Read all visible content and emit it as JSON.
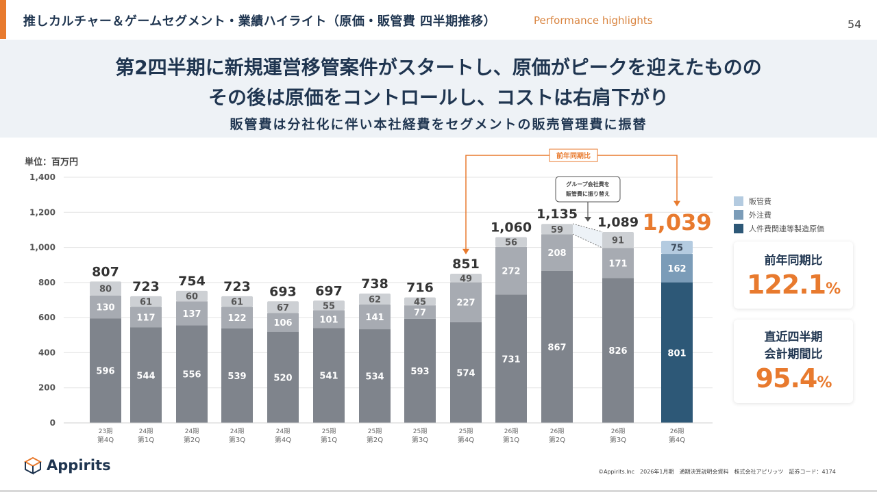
{
  "header": {
    "title": "推しカルチャー＆ゲームセグメント・業績ハイライト（原価・販管費 四半期推移）",
    "subtitle": "Performance highlights",
    "page_number": "54"
  },
  "banner": {
    "line1": "第2四半期に新規運営移管案件がスタートし、原価がピークを迎えたものの",
    "line2": "その後は原価をコントロールし、コストは右肩下がり",
    "line3": "販管費は分社化に伴い本社経費をセグメントの販売管理費に振替"
  },
  "unit_label": "単位：百万円",
  "annotations": {
    "yoy_bracket_label": "前年同期比",
    "transfer_note_line1": "グループ会社費を",
    "transfer_note_line2": "販管費に振り替え"
  },
  "cards": [
    {
      "label_lines": [
        "前年同期比"
      ],
      "value": "122.1",
      "unit": "%"
    },
    {
      "label_lines": [
        "直近四半期",
        "会計期間比"
      ],
      "value": "95.4",
      "unit": "%"
    }
  ],
  "colors": {
    "accent": "#e87a2e",
    "navy": "#1f3550",
    "past_cost": "#7f848c",
    "past_outsourcing": "#a7abb2",
    "past_sga": "#cdd0d4",
    "current_cost": "#2d5877",
    "current_outsourcing": "#7b9cb8",
    "current_sga": "#b4cbe0"
  },
  "chart_data": {
    "type": "bar",
    "stacked": true,
    "title": "",
    "xlabel": "",
    "ylabel": "単位：百万円",
    "ylim": [
      0,
      1400
    ],
    "yticks": [
      0,
      200,
      400,
      600,
      800,
      1000,
      1200,
      1400
    ],
    "ytick_labels": [
      "0",
      "200",
      "400",
      "600",
      "800",
      "1,000",
      "1,200",
      "1,400"
    ],
    "grid": true,
    "legend_position": "right",
    "categories": [
      [
        "23期",
        "第4Q"
      ],
      [
        "24期",
        "第1Q"
      ],
      [
        "24期",
        "第2Q"
      ],
      [
        "24期",
        "第3Q"
      ],
      [
        "24期",
        "第4Q"
      ],
      [
        "25期",
        "第1Q"
      ],
      [
        "25期",
        "第2Q"
      ],
      [
        "25期",
        "第3Q"
      ],
      [
        "25期",
        "第4Q"
      ],
      [
        "26期",
        "第1Q"
      ],
      [
        "26期",
        "第2Q"
      ],
      [
        "26期",
        "第3Q"
      ],
      [
        "26期",
        "第4Q"
      ]
    ],
    "series": [
      {
        "name": "人件費関連等製造原価",
        "values": [
          596,
          544,
          556,
          539,
          520,
          541,
          534,
          593,
          574,
          731,
          867,
          826,
          801
        ]
      },
      {
        "name": "外注費",
        "values": [
          130,
          117,
          137,
          122,
          106,
          101,
          141,
          77,
          227,
          272,
          208,
          171,
          162
        ]
      },
      {
        "name": "販管費",
        "values": [
          80,
          61,
          60,
          61,
          67,
          55,
          62,
          45,
          49,
          56,
          59,
          91,
          75
        ]
      }
    ],
    "totals": [
      807,
      723,
      754,
      723,
      693,
      697,
      738,
      716,
      851,
      1060,
      1135,
      1089,
      1039
    ],
    "total_labels": [
      "807",
      "723",
      "754",
      "723",
      "693",
      "697",
      "738",
      "716",
      "851",
      "1,060",
      "1,135",
      "1,089",
      "1,039"
    ],
    "legend": [
      "販管費",
      "外注費",
      "人件費関連等製造原価"
    ],
    "highlight_index": 12
  },
  "footer": {
    "logo_text": "Appirits",
    "text": "©Appirits.Inc　2026年1月期　通期決算説明会資料　株式会社アピリッツ　証券コード：4174"
  }
}
